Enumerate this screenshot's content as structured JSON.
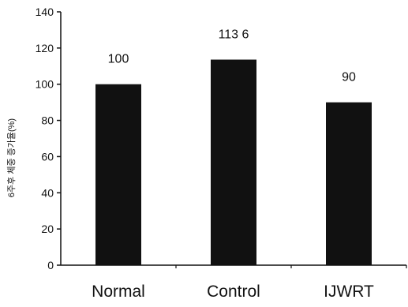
{
  "chart_data": {
    "type": "bar",
    "categories": [
      "Normal",
      "Control",
      "IJWRT"
    ],
    "values": [
      100,
      113.6,
      90
    ],
    "data_labels": [
      "100",
      "113 6",
      "90"
    ],
    "ylabel": "6주후 체중 증가율(%)",
    "ylim": [
      0,
      140
    ],
    "yticks": [
      0,
      20,
      40,
      60,
      80,
      100,
      120,
      140
    ],
    "ytick_labels": [
      "0",
      "20",
      "40",
      "60",
      "80",
      "100",
      "120",
      "140"
    ],
    "grid": false,
    "legend": "none",
    "bar_color": "#111111"
  }
}
